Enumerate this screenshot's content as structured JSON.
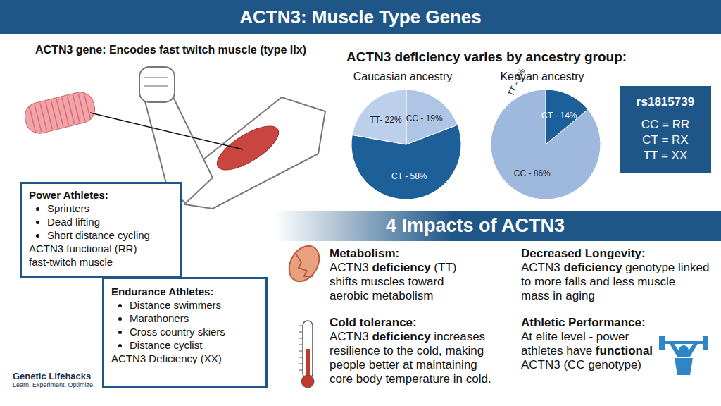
{
  "title": "ACTN3: Muscle Type Genes",
  "gene_heading": "ACTN3 gene: Encodes fast twitch muscle (type IIx)",
  "ancestry_heading": "ACTN3 deficiency varies by ancestry group:",
  "chart_data": [
    {
      "type": "pie",
      "title": "Caucasian ancestry",
      "labels": [
        "CC - 19%",
        "CT - 58%",
        "TT- 22%"
      ],
      "values": [
        19,
        58,
        22
      ],
      "colors": [
        "#aec5e6",
        "#1d5f99",
        "#bcd0ec"
      ],
      "data_labels": true
    },
    {
      "type": "pie",
      "title": "Kenyan ancestry",
      "labels": [
        "TT - 0%",
        "CT - 14%",
        "CC - 86%"
      ],
      "values": [
        0,
        14,
        86
      ],
      "colors": [
        "#bcd0ec",
        "#1d5f99",
        "#9fb8de"
      ],
      "data_labels": true
    }
  ],
  "genotype_key": {
    "title": "rs1815739",
    "rows": [
      "CC = RR",
      "CT = RX",
      "TT = XX"
    ]
  },
  "power_athletes": {
    "title": "Power Athletes:",
    "items": [
      "Sprinters",
      "Dead lifting",
      "Short distance cycling"
    ],
    "note": [
      "ACTN3 functional (RR)",
      "fast-twitch muscle"
    ]
  },
  "endurance_athletes": {
    "title": "Endurance Athletes:",
    "items": [
      "Distance swimmers",
      "Marathoners",
      "Cross country skiers",
      "Distance cyclist"
    ],
    "note": [
      "ACTN3 Deficiency (XX)"
    ]
  },
  "impacts": {
    "title": "4 Impacts of ACTN3",
    "items": [
      {
        "title": "Metabolism:",
        "emphasis": "deficiency",
        "lines": [
          "ACTN3 deficiency (TT)",
          "shifts muscles toward",
          "aerobic metabolism"
        ]
      },
      {
        "title": "Cold tolerance:",
        "emphasis": "deficiency",
        "lines": [
          "ACTN3 deficiency increases",
          "resilience to the cold, making",
          "people better at maintaining",
          "core body temperature in cold."
        ]
      },
      {
        "title": "Decreased Longevity:",
        "emphasis": "deficiency",
        "lines": [
          "ACTN3 deficiency genotype linked",
          "to more falls and less muscle",
          "mass in aging"
        ]
      },
      {
        "title": "Athletic Performance:",
        "emphasis": "functional",
        "lines": [
          "At elite level - power",
          "athletes have functional",
          "ACTN3 (CC genotype)"
        ]
      }
    ]
  },
  "logo": {
    "name": "Genetic Lifehacks",
    "tagline": "Learn. Experiment. Optimize."
  }
}
